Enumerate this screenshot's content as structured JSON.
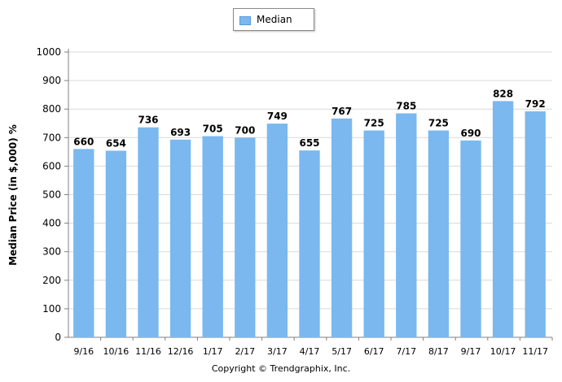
{
  "chart_data": {
    "type": "bar",
    "categories": [
      "9/16",
      "10/16",
      "11/16",
      "12/16",
      "1/17",
      "2/17",
      "3/17",
      "4/17",
      "5/17",
      "6/17",
      "7/17",
      "8/17",
      "9/17",
      "10/17",
      "11/17"
    ],
    "series": [
      {
        "name": "Median",
        "values": [
          660,
          654,
          736,
          693,
          705,
          700,
          749,
          655,
          767,
          725,
          785,
          725,
          690,
          828,
          792
        ]
      }
    ],
    "title": "",
    "xlabel": "",
    "ylabel": "Median Price (in $,000) %",
    "ylim": [
      0,
      1000
    ],
    "yticks": [
      0,
      100,
      200,
      300,
      400,
      500,
      600,
      700,
      800,
      900,
      1000
    ],
    "grid": true,
    "legend_position": "top-center",
    "bar_color": "#7ab8ef",
    "data_labels": true
  },
  "footer": {
    "copyright": "Copyright © Trendgraphix, Inc."
  }
}
